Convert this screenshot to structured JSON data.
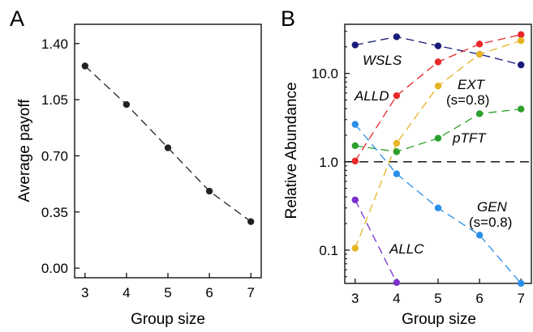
{
  "chart_data": [
    {
      "panel_label": "A",
      "type": "line",
      "xlabel": "Group size",
      "ylabel": "Average payoff",
      "xlim": [
        2.75,
        7.25
      ],
      "ylim": [
        -0.06,
        1.52
      ],
      "x_ticks": [
        3,
        4,
        5,
        6,
        7
      ],
      "y_ticks": [
        "0.00",
        "0.35",
        "0.70",
        "1.05",
        "1.40"
      ],
      "grid": false,
      "line_style": "dashed",
      "series": [
        {
          "color": "#222222",
          "x": [
            3,
            4,
            5,
            6,
            7
          ],
          "y": [
            1.26,
            1.02,
            0.75,
            0.48,
            0.29
          ]
        }
      ]
    },
    {
      "panel_label": "B",
      "type": "line",
      "xlabel": "Group size",
      "ylabel": "Relative Abundance",
      "y_scale": "log",
      "xlim": [
        2.75,
        7.25
      ],
      "ylim": [
        0.042,
        36
      ],
      "x_ticks": [
        3,
        4,
        5,
        6,
        7
      ],
      "y_ticks": [
        "0.1",
        "1.0",
        "10.0"
      ],
      "grid": false,
      "reference_line": {
        "y": 1.0,
        "style": "dashed"
      },
      "series": [
        {
          "name": "WSLS",
          "color": "#1a1a7a",
          "x": [
            3,
            4,
            5,
            6,
            7
          ],
          "y": [
            21,
            26,
            20.5,
            16.5,
            12.5
          ]
        },
        {
          "name": "ALLD",
          "color": "#e8282b",
          "x": [
            3,
            4,
            5,
            6,
            7
          ],
          "y": [
            1.02,
            5.6,
            13.5,
            21.5,
            27.5
          ]
        },
        {
          "name": "EXT",
          "sublabel": "(s=0.8)",
          "color": "#e6b422",
          "x": [
            3,
            4,
            5,
            6,
            7
          ],
          "y": [
            0.105,
            1.62,
            7.2,
            16.5,
            23.5
          ]
        },
        {
          "name": "pTFT",
          "color": "#2ca02c",
          "x": [
            3,
            4,
            5,
            6,
            7
          ],
          "y": [
            1.52,
            1.3,
            1.85,
            3.5,
            3.95
          ]
        },
        {
          "name": "GEN",
          "sublabel": "(s=0.8)",
          "color": "#2a8fe8",
          "x": [
            3,
            4,
            5,
            6,
            7
          ],
          "y": [
            2.65,
            0.73,
            0.3,
            0.148,
            0.042
          ]
        },
        {
          "name": "ALLC",
          "color": "#7b2fc9",
          "x": [
            3,
            4
          ],
          "y": [
            0.37,
            0.043
          ]
        }
      ]
    }
  ]
}
